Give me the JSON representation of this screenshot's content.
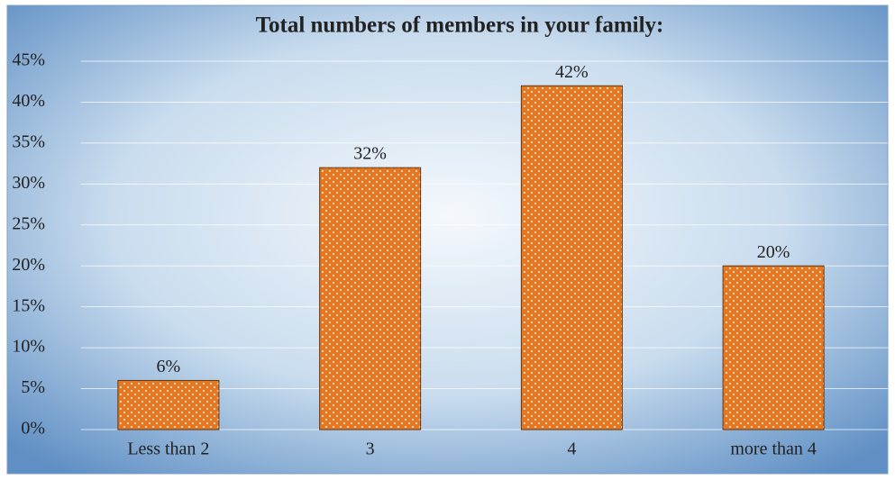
{
  "chart_data": {
    "type": "bar",
    "title": "Total numbers of members in your family:",
    "categories": [
      "Less than 2",
      "3",
      "4",
      "more than 4"
    ],
    "values": [
      6,
      32,
      42,
      20
    ],
    "value_labels": [
      "6%",
      "32%",
      "42%",
      "20%"
    ],
    "color": "#e8761e",
    "ylim": [
      0,
      45
    ],
    "yticks": [
      {
        "value": 0,
        "label": "0%"
      },
      {
        "value": 5,
        "label": "5%"
      },
      {
        "value": 10,
        "label": "10%"
      },
      {
        "value": 15,
        "label": "15%"
      },
      {
        "value": 20,
        "label": "20%"
      },
      {
        "value": 25,
        "label": "25%"
      },
      {
        "value": 30,
        "label": "30%"
      },
      {
        "value": 35,
        "label": "35%"
      },
      {
        "value": 40,
        "label": "40%"
      },
      {
        "value": 45,
        "label": "45%"
      }
    ],
    "grid": true
  }
}
